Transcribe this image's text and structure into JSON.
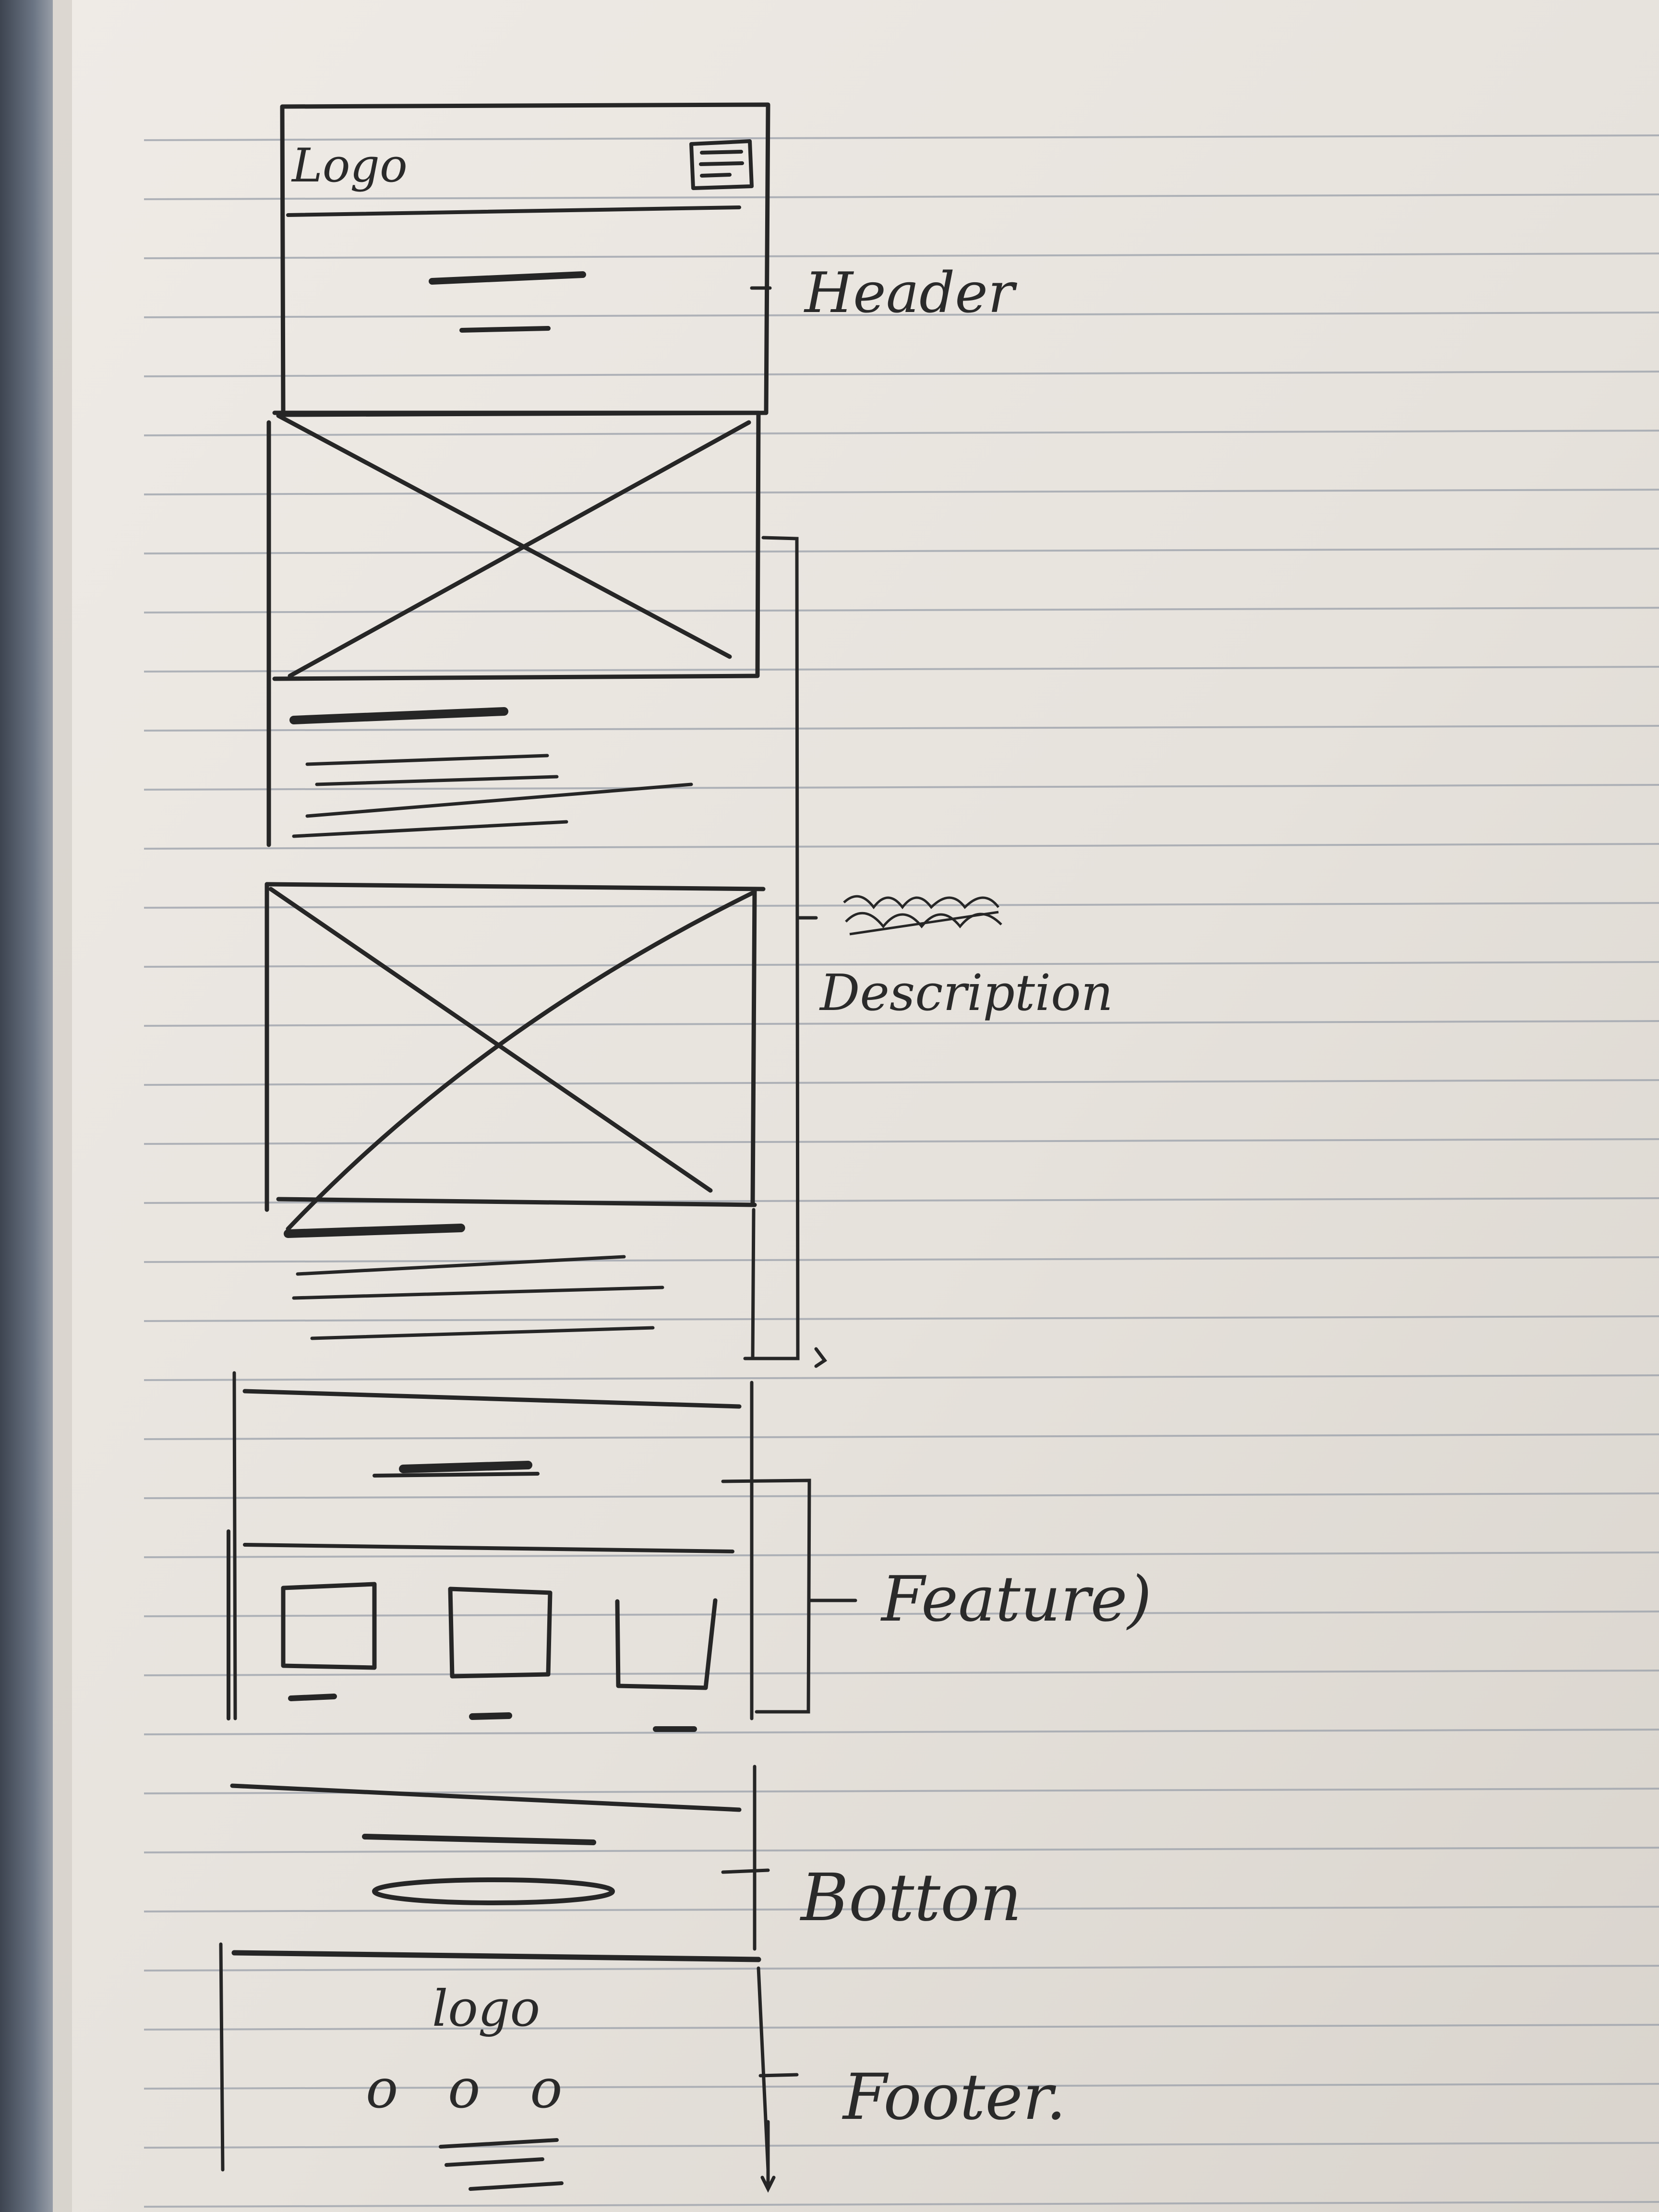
{
  "sketch": {
    "phone_logo": "Logo",
    "footer_logo": "logo",
    "footer_dots": "o o o",
    "annotations": {
      "header": "Header",
      "description": "Description",
      "features": "Feature)",
      "button": "Botton",
      "footer": "Footer."
    },
    "colors": {
      "paper": "#e8e4df",
      "rule_line": "#9a9fa8",
      "ink": "#262626",
      "binder": "#5c6572"
    }
  }
}
